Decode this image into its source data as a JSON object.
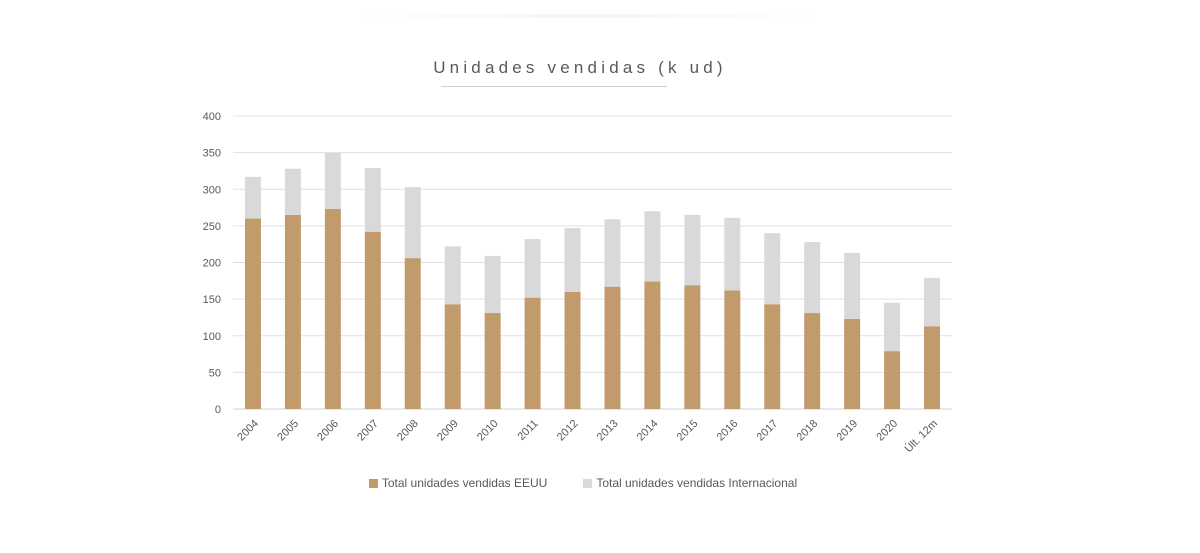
{
  "chart_data": {
    "type": "bar",
    "stacked": true,
    "title": "Unidades vendidas (k ud)",
    "xlabel": "",
    "ylabel": "",
    "ylim": [
      0,
      400
    ],
    "yticks": [
      0,
      50,
      100,
      150,
      200,
      250,
      300,
      350,
      400
    ],
    "grid": true,
    "legend_position": "bottom",
    "categories": [
      "2004",
      "2005",
      "2006",
      "2007",
      "2008",
      "2009",
      "2010",
      "2011",
      "2012",
      "2013",
      "2014",
      "2015",
      "2016",
      "2017",
      "2018",
      "2019",
      "2020",
      "Últ. 12m"
    ],
    "series": [
      {
        "name": "Total unidades vendidas EEUU",
        "color": "#C29B6C",
        "values": [
          260,
          265,
          273,
          242,
          206,
          143,
          131,
          152,
          160,
          167,
          174,
          169,
          162,
          143,
          131,
          123,
          79,
          113
        ]
      },
      {
        "name": "Total unidades vendidas Internacional",
        "color": "#D9D9D9",
        "values": [
          57,
          63,
          77,
          87,
          97,
          79,
          78,
          80,
          87,
          92,
          96,
          96,
          99,
          97,
          97,
          90,
          66,
          66
        ]
      }
    ]
  }
}
